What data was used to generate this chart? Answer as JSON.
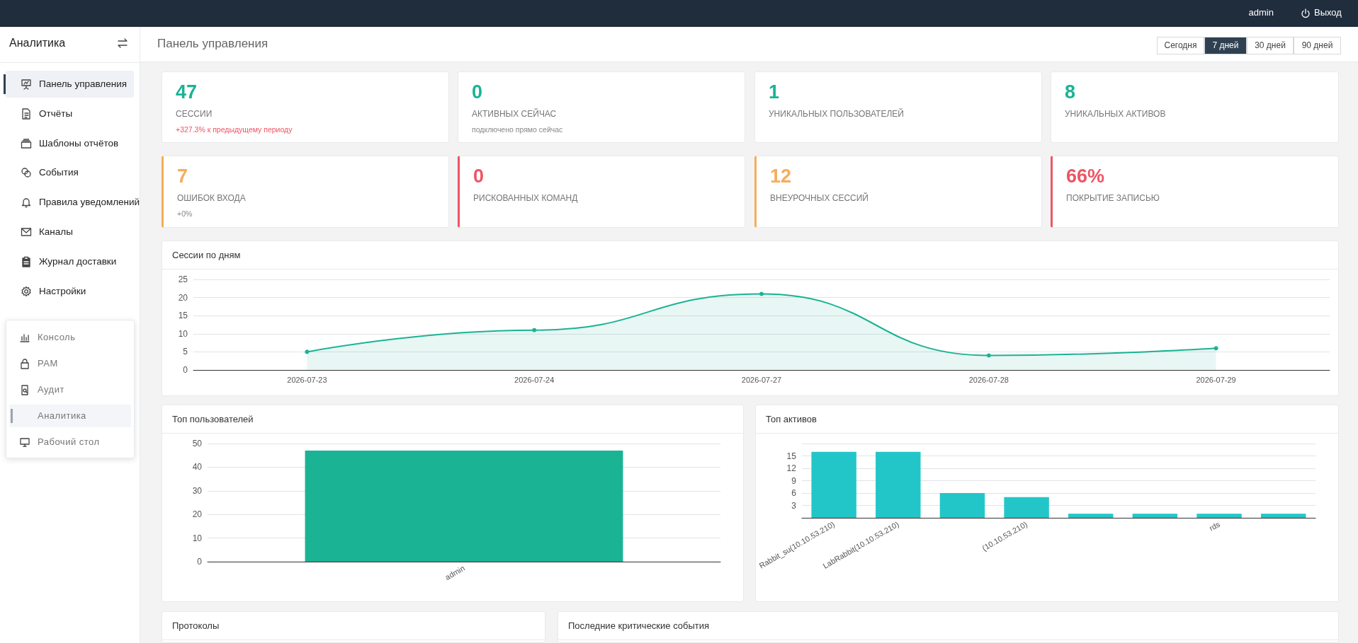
{
  "chart_data": [
    {
      "type": "other",
      "annotations": [
        "admin",
        "Выход"
      ]
    },
    {
      "type": "other",
      "title": "Аналитика",
      "annotations": [
        "Панель управления",
        "Отчёты",
        "Шаблоны отчётов",
        "События",
        "Правила уведомлений",
        "Каналы",
        "Журнал доставки",
        "Настройки"
      ]
    },
    {
      "type": "other",
      "title": "Панель управления",
      "annotations": [
        "Сегодня",
        "7 дней",
        "30 дней",
        "90 дней"
      ]
    },
    {
      "type": "other",
      "title": "47",
      "subtitle": "СЕССИИ",
      "color": "#1ab394",
      "annotations": [
        "+327.3% к предыдущему периоду"
      ]
    },
    {
      "type": "other",
      "title": "0",
      "subtitle": "АКТИВНЫХ СЕЙЧАС",
      "color": "#1ab394",
      "annotations": [
        "подключено прямо сейчас"
      ]
    },
    {
      "type": "other",
      "title": "1",
      "subtitle": "УНИКАЛЬНЫХ ПОЛЬЗОВАТЕЛЕЙ",
      "color": "#1ab394"
    },
    {
      "type": "other",
      "title": "8",
      "subtitle": "УНИКАЛЬНЫХ АКТИВОВ",
      "color": "#1ab394"
    },
    {
      "type": "other",
      "title": "7",
      "subtitle": "ОШИБОК ВХОДА",
      "color": "#f8ac59",
      "annotations": [
        "+0%"
      ]
    },
    {
      "type": "other",
      "title": "0",
      "subtitle": "РИСКОВАННЫХ КОМАНД",
      "color": "#ed5565"
    },
    {
      "type": "other",
      "title": "12",
      "subtitle": "ВНЕУРОЧНЫХ СЕССИЙ",
      "color": "#f8ac59"
    },
    {
      "type": "other",
      "title": "66%",
      "subtitle": "ПОКРЫТИЕ ЗАПИСЬЮ",
      "color": "#ed5565"
    },
    {
      "type": "area",
      "title": "Сессии по дням",
      "categories": [
        "2026-07-23",
        "2026-07-24",
        "2026-07-27",
        "2026-07-28",
        "2026-07-29"
      ],
      "values": [
        5,
        11,
        21,
        4,
        6
      ],
      "color": "#1ab394",
      "ylim": [
        0,
        25
      ],
      "yticks": [
        0,
        5,
        10,
        15,
        20,
        25
      ],
      "grid": "y",
      "marker": "circle"
    },
    {
      "type": "bar",
      "title": "Топ пользователей",
      "categories": [
        "admin"
      ],
      "values": [
        47
      ],
      "color": "#1ab394",
      "ylim": [
        0,
        50
      ],
      "yticks": [
        0,
        10,
        20,
        30,
        40,
        50
      ],
      "grid": "y"
    },
    {
      "type": "bar",
      "title": "Топ активов",
      "categories": [
        "Rabbit_su(10.10.53.210)",
        "LabRabbit(10.10.53.210)",
        null,
        "(10.10.53.210)",
        null,
        null,
        "rds",
        null
      ],
      "values": [
        16,
        16,
        6,
        5,
        1,
        1,
        1,
        1
      ],
      "color": "#23c6c8",
      "ylim": [
        0,
        18
      ],
      "yticks": [
        {
          "value": 0,
          "label": null
        },
        3,
        6,
        9,
        12,
        15,
        {
          "value": 18,
          "label": null
        }
      ],
      "grid": "y"
    },
    {
      "type": "other",
      "title": "Протоколы"
    },
    {
      "type": "other",
      "title": "Последние критические события"
    },
    {
      "type": "other",
      "annotations": [
        "Консоль",
        "PAM",
        "Аудит",
        "Аналитика",
        "Рабочий стол"
      ]
    }
  ]
}
